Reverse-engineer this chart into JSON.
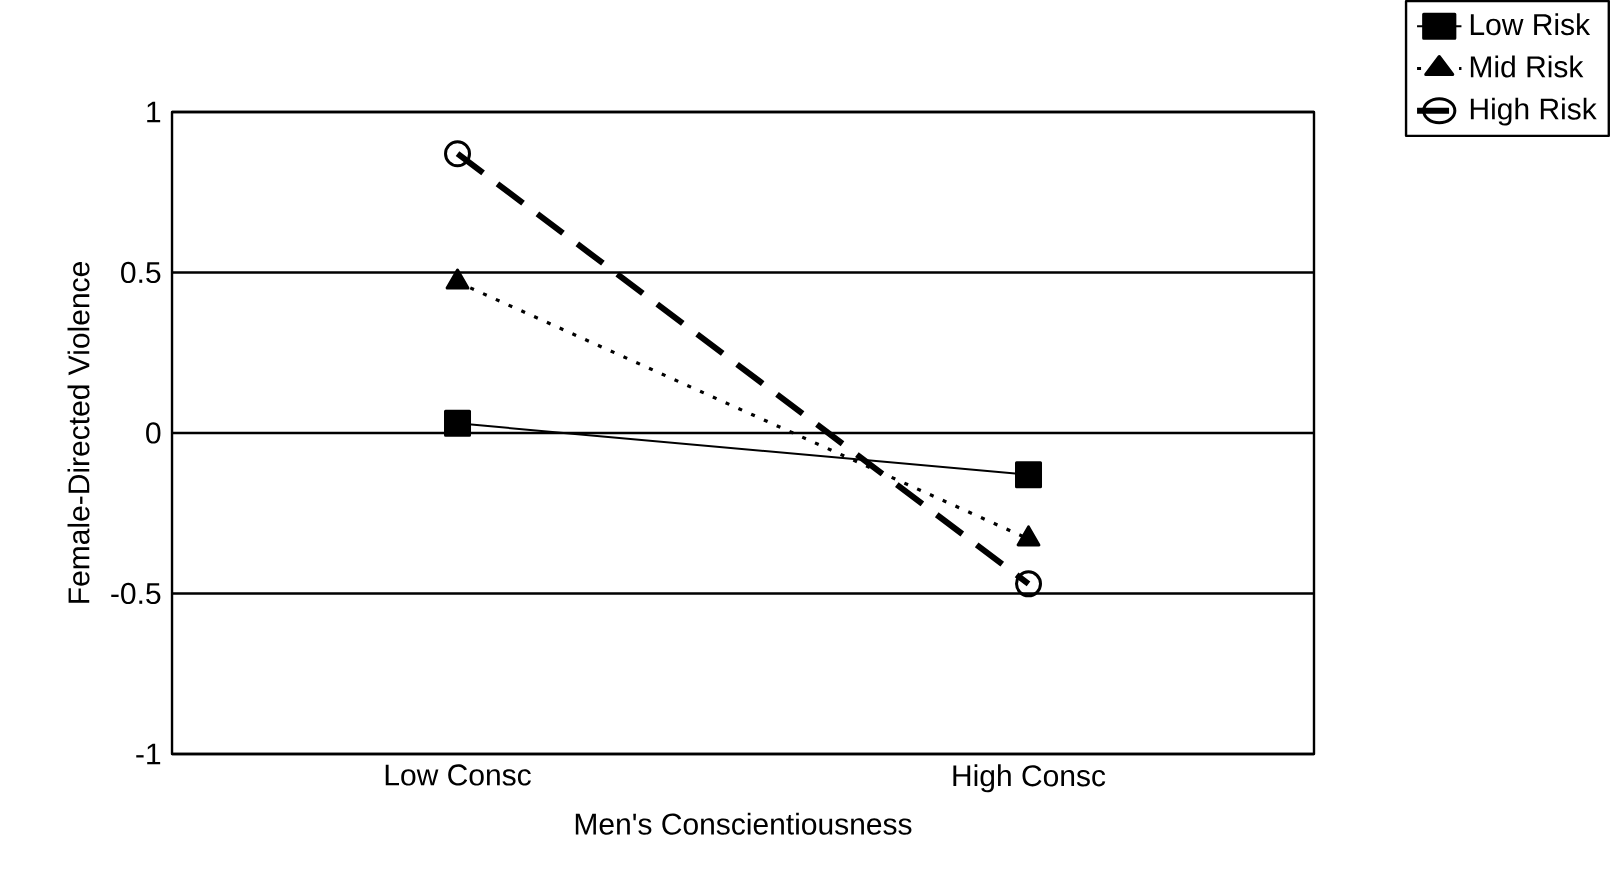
{
  "chart_data": {
    "type": "line",
    "xlabel": "Men's Conscientiousness",
    "ylabel": "Female-Directed Violence",
    "categories": [
      "Low Consc",
      "High Consc"
    ],
    "series": [
      {
        "name": "Low Risk",
        "color": "#000000",
        "values": [
          0.03,
          -0.13
        ],
        "marker": "square",
        "line_style": "solid"
      },
      {
        "name": "Mid Risk",
        "color": "#000000",
        "values": [
          0.47,
          -0.33
        ],
        "marker": "triangle",
        "line_style": "dotted"
      },
      {
        "name": "High Risk",
        "color": "#000000",
        "values": [
          0.87,
          -0.47
        ],
        "marker": "circle",
        "line_style": "dashed"
      }
    ],
    "ylim": [
      -1,
      1
    ],
    "yticks": [
      -1,
      -0.5,
      0,
      0.5,
      1
    ],
    "grid": "y",
    "legend": "top right"
  }
}
